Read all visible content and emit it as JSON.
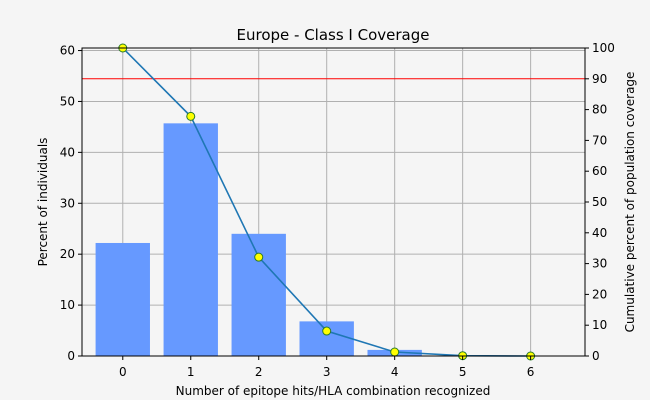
{
  "chart_data": {
    "type": "bar",
    "title": "Europe - Class I Coverage",
    "xlabel": "Number of epitope hits/HLA combination recognized",
    "ylabel": "Percent of individuals",
    "y2label": "Cumulative percent of population coverage",
    "categories": [
      "0",
      "1",
      "2",
      "3",
      "4",
      "5",
      "6"
    ],
    "x": [
      0,
      1,
      2,
      3,
      4,
      5,
      6
    ],
    "xlim": [
      -0.6,
      6.8
    ],
    "ylim": [
      0,
      60.5
    ],
    "y2lim": [
      0,
      100
    ],
    "yticks": [
      0,
      10,
      20,
      30,
      40,
      50,
      60
    ],
    "y2ticks": [
      0,
      10,
      20,
      30,
      40,
      50,
      60,
      70,
      80,
      90,
      100
    ],
    "grid": true,
    "series": [
      {
        "kind": "bar",
        "axis": "left",
        "color": "#6699ff",
        "values": [
          22.2,
          45.7,
          24.0,
          6.8,
          1.2,
          0.1,
          0.0
        ]
      },
      {
        "kind": "line",
        "axis": "right",
        "color": "#1f77b4",
        "marker_color": "#ffff00",
        "values": [
          100,
          77.8,
          32.1,
          8.1,
          1.3,
          0.1,
          0.0
        ]
      }
    ],
    "reference_line": {
      "axis": "right",
      "value": 90,
      "color": "#ff0000"
    }
  }
}
